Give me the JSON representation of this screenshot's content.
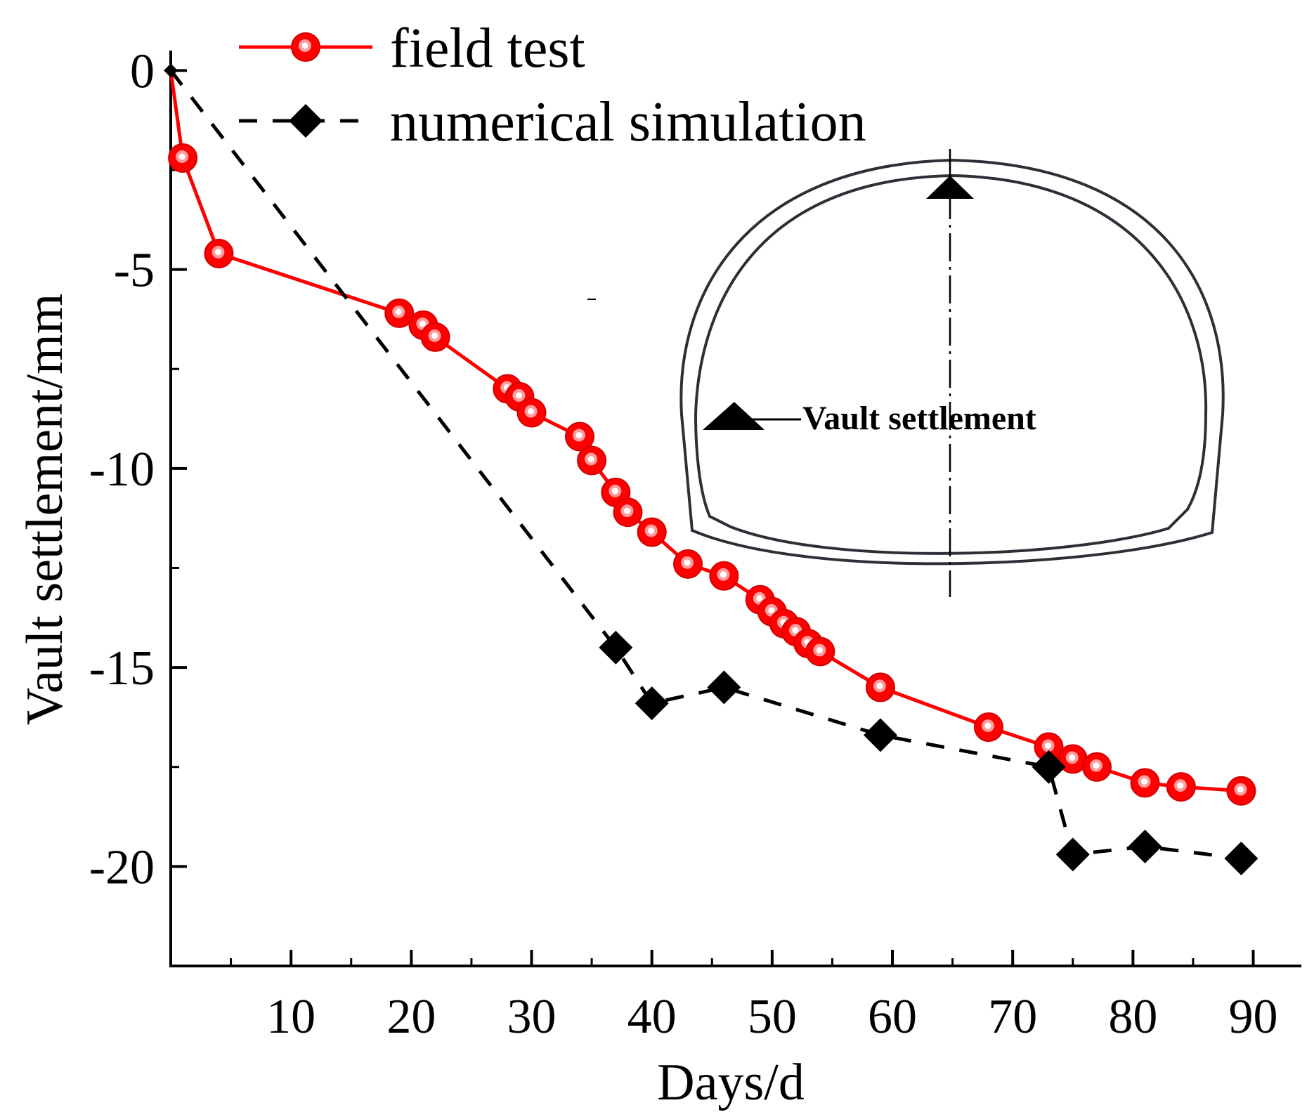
{
  "chart_data": {
    "type": "line",
    "title": "",
    "xlabel": "Days/d",
    "ylabel": "Vault settlement/mm",
    "xlim": [
      0,
      94
    ],
    "ylim": [
      -22.5,
      0.5
    ],
    "x_ticks": [
      10,
      20,
      30,
      40,
      50,
      60,
      70,
      80,
      90
    ],
    "y_ticks": [
      0,
      -5,
      -10,
      -15,
      -20
    ],
    "grid": false,
    "legend_position": "top-left",
    "series": [
      {
        "name": "field test",
        "color": "#ff0000",
        "marker": "circle",
        "line_style": "solid",
        "points": [
          [
            0,
            0
          ],
          [
            1,
            -2.2
          ],
          [
            4,
            -4.6
          ],
          [
            19,
            -6.1
          ],
          [
            21,
            -6.4
          ],
          [
            22,
            -6.7
          ],
          [
            28,
            -8.0
          ],
          [
            29,
            -8.2
          ],
          [
            30,
            -8.6
          ],
          [
            34,
            -9.2
          ],
          [
            35,
            -9.8
          ],
          [
            37,
            -10.6
          ],
          [
            38,
            -11.1
          ],
          [
            40,
            -11.6
          ],
          [
            43,
            -12.4
          ],
          [
            46,
            -12.7
          ],
          [
            49,
            -13.3
          ],
          [
            50,
            -13.6
          ],
          [
            51,
            -13.9
          ],
          [
            52,
            -14.1
          ],
          [
            53,
            -14.4
          ],
          [
            54,
            -14.6
          ],
          [
            59,
            -15.5
          ],
          [
            68,
            -16.5
          ],
          [
            73,
            -17.0
          ],
          [
            75,
            -17.3
          ],
          [
            77,
            -17.5
          ],
          [
            81,
            -17.9
          ],
          [
            84,
            -18.0
          ],
          [
            89,
            -18.1
          ]
        ]
      },
      {
        "name": "numerical simulation",
        "color": "#000000",
        "marker": "diamond",
        "line_style": "dashed",
        "points": [
          [
            0,
            0
          ],
          [
            37,
            -14.5
          ],
          [
            40,
            -15.9
          ],
          [
            46,
            -15.5
          ],
          [
            59,
            -16.7
          ],
          [
            73,
            -17.5
          ],
          [
            75,
            -19.7
          ],
          [
            81,
            -19.5
          ],
          [
            89,
            -19.8
          ]
        ]
      }
    ],
    "inset": {
      "label": "Vault settlement",
      "description_icon": "tunnel-cross-section-icon"
    }
  }
}
